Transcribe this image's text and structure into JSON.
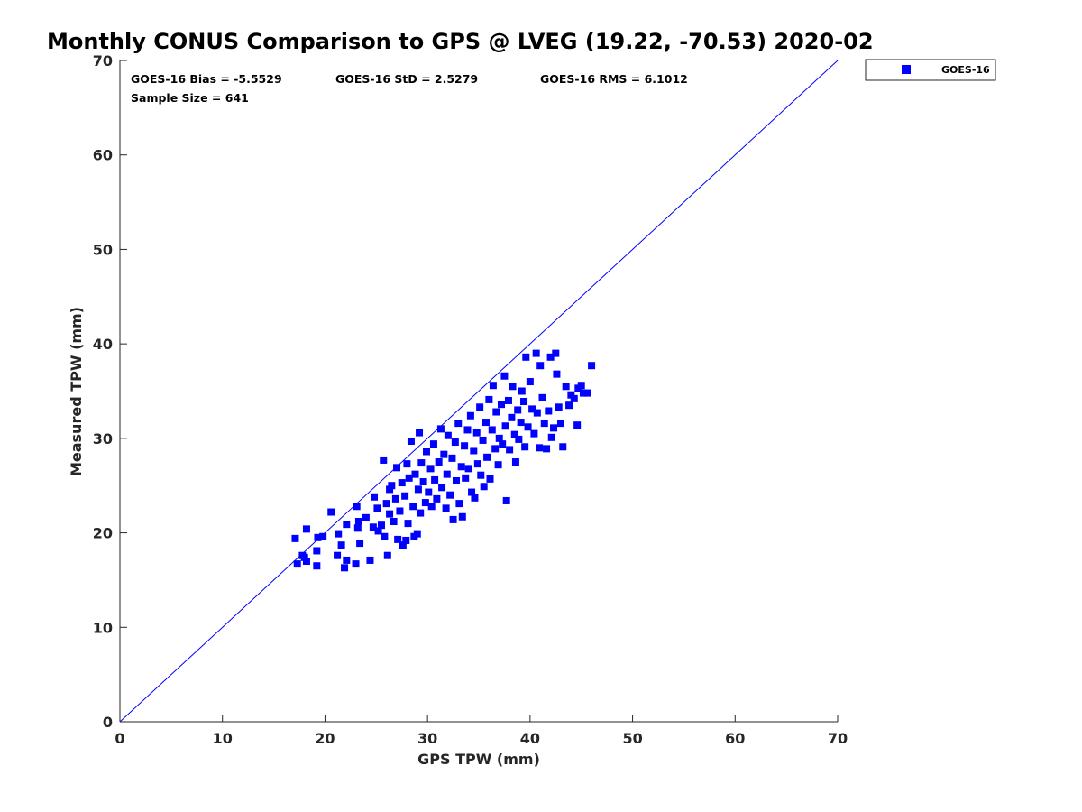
{
  "chart_data": {
    "type": "scatter",
    "title": "Monthly CONUS Comparison to GPS @ LVEG (19.22, -70.53) 2020-02",
    "xlabel": "GPS TPW (mm)",
    "ylabel": "Measured TPW (mm)",
    "xlim": [
      0,
      70
    ],
    "ylim": [
      0,
      70
    ],
    "xticks": [
      "0",
      "10",
      "20",
      "30",
      "40",
      "50",
      "60",
      "70"
    ],
    "yticks": [
      "0",
      "10",
      "20",
      "30",
      "40",
      "50",
      "60",
      "70"
    ],
    "grid": false,
    "legend_position": "outside-top-right",
    "annotations": {
      "bias": "GOES-16 Bias = -5.5529",
      "std": "GOES-16 StD = 2.5279",
      "rms": "GOES-16 RMS = 6.1012",
      "sample": "Sample Size = 641"
    },
    "reference_line": {
      "from": [
        0,
        0
      ],
      "to": [
        70,
        70
      ],
      "color": "#0000ff"
    },
    "series": [
      {
        "name": "GOES-16",
        "color": "#0000ff",
        "marker": "square",
        "points": [
          [
            17.1,
            19.4
          ],
          [
            17.3,
            16.7
          ],
          [
            17.8,
            17.6
          ],
          [
            18.0,
            17.4
          ],
          [
            18.2,
            20.4
          ],
          [
            18.2,
            17.0
          ],
          [
            19.2,
            16.5
          ],
          [
            19.2,
            18.1
          ],
          [
            19.3,
            19.5
          ],
          [
            19.8,
            19.6
          ],
          [
            20.6,
            22.2
          ],
          [
            21.2,
            17.6
          ],
          [
            21.3,
            19.9
          ],
          [
            21.6,
            18.7
          ],
          [
            21.9,
            16.3
          ],
          [
            22.1,
            20.9
          ],
          [
            22.1,
            17.1
          ],
          [
            23.1,
            22.8
          ],
          [
            23.0,
            16.7
          ],
          [
            23.2,
            20.5
          ],
          [
            23.3,
            21.2
          ],
          [
            23.4,
            18.9
          ],
          [
            24.0,
            21.6
          ],
          [
            24.4,
            17.1
          ],
          [
            24.7,
            20.6
          ],
          [
            24.8,
            23.8
          ],
          [
            25.1,
            22.6
          ],
          [
            25.2,
            20.2
          ],
          [
            25.5,
            20.8
          ],
          [
            25.7,
            27.7
          ],
          [
            25.8,
            19.6
          ],
          [
            26.0,
            23.1
          ],
          [
            26.1,
            17.6
          ],
          [
            26.3,
            24.6
          ],
          [
            26.3,
            22.0
          ],
          [
            26.5,
            25.0
          ],
          [
            26.7,
            21.2
          ],
          [
            26.9,
            23.6
          ],
          [
            27.0,
            26.9
          ],
          [
            27.1,
            19.3
          ],
          [
            27.3,
            22.3
          ],
          [
            27.5,
            25.3
          ],
          [
            27.6,
            18.7
          ],
          [
            27.8,
            23.9
          ],
          [
            27.9,
            19.2
          ],
          [
            28.0,
            27.3
          ],
          [
            28.1,
            21.0
          ],
          [
            28.2,
            25.8
          ],
          [
            28.4,
            29.7
          ],
          [
            28.6,
            22.8
          ],
          [
            28.7,
            19.6
          ],
          [
            28.8,
            26.2
          ],
          [
            29.0,
            19.9
          ],
          [
            29.1,
            24.6
          ],
          [
            29.2,
            30.6
          ],
          [
            29.3,
            22.1
          ],
          [
            29.4,
            27.4
          ],
          [
            29.6,
            25.4
          ],
          [
            29.8,
            23.2
          ],
          [
            29.9,
            28.6
          ],
          [
            30.1,
            24.3
          ],
          [
            30.3,
            26.8
          ],
          [
            30.4,
            22.8
          ],
          [
            30.6,
            29.4
          ],
          [
            30.7,
            25.6
          ],
          [
            30.9,
            23.6
          ],
          [
            31.1,
            27.5
          ],
          [
            31.3,
            31.0
          ],
          [
            31.4,
            24.8
          ],
          [
            31.6,
            28.3
          ],
          [
            31.8,
            22.6
          ],
          [
            31.9,
            26.2
          ],
          [
            32.0,
            30.3
          ],
          [
            32.2,
            24.0
          ],
          [
            32.4,
            27.9
          ],
          [
            32.5,
            21.4
          ],
          [
            32.7,
            29.6
          ],
          [
            32.8,
            25.5
          ],
          [
            33.0,
            31.6
          ],
          [
            33.1,
            23.1
          ],
          [
            33.3,
            27.0
          ],
          [
            33.4,
            21.7
          ],
          [
            33.6,
            29.2
          ],
          [
            33.7,
            25.8
          ],
          [
            33.9,
            30.9
          ],
          [
            34.0,
            26.8
          ],
          [
            34.2,
            32.4
          ],
          [
            34.3,
            24.3
          ],
          [
            34.5,
            28.7
          ],
          [
            34.6,
            23.7
          ],
          [
            34.8,
            30.6
          ],
          [
            34.9,
            27.3
          ],
          [
            35.1,
            33.3
          ],
          [
            35.2,
            26.1
          ],
          [
            35.4,
            29.8
          ],
          [
            35.5,
            24.9
          ],
          [
            35.7,
            31.7
          ],
          [
            35.8,
            28.0
          ],
          [
            36.0,
            34.1
          ],
          [
            36.1,
            25.7
          ],
          [
            36.3,
            30.9
          ],
          [
            36.4,
            35.6
          ],
          [
            36.6,
            28.9
          ],
          [
            36.7,
            32.8
          ],
          [
            36.9,
            27.2
          ],
          [
            37.0,
            30.0
          ],
          [
            37.2,
            33.6
          ],
          [
            37.3,
            29.4
          ],
          [
            37.5,
            36.6
          ],
          [
            37.6,
            31.3
          ],
          [
            37.7,
            23.4
          ],
          [
            37.9,
            34.0
          ],
          [
            38.0,
            28.8
          ],
          [
            38.2,
            32.2
          ],
          [
            38.3,
            35.5
          ],
          [
            38.5,
            30.4
          ],
          [
            38.6,
            27.5
          ],
          [
            38.8,
            33.0
          ],
          [
            38.9,
            29.9
          ],
          [
            39.1,
            31.7
          ],
          [
            39.2,
            35.0
          ],
          [
            39.4,
            33.9
          ],
          [
            39.5,
            29.1
          ],
          [
            39.6,
            38.6
          ],
          [
            39.8,
            31.2
          ],
          [
            40.0,
            36.0
          ],
          [
            40.2,
            33.1
          ],
          [
            40.4,
            30.5
          ],
          [
            40.6,
            39.0
          ],
          [
            40.7,
            32.7
          ],
          [
            40.9,
            29.0
          ],
          [
            41.0,
            37.7
          ],
          [
            41.2,
            34.3
          ],
          [
            41.4,
            31.6
          ],
          [
            41.6,
            28.9
          ],
          [
            41.8,
            32.9
          ],
          [
            42.0,
            38.6
          ],
          [
            42.1,
            30.1
          ],
          [
            42.3,
            31.1
          ],
          [
            42.5,
            39.0
          ],
          [
            42.6,
            36.8
          ],
          [
            42.8,
            33.3
          ],
          [
            43.0,
            31.6
          ],
          [
            43.2,
            29.1
          ],
          [
            43.5,
            35.5
          ],
          [
            43.8,
            33.5
          ],
          [
            44.0,
            34.6
          ],
          [
            44.3,
            34.2
          ],
          [
            44.6,
            31.4
          ],
          [
            44.7,
            35.3
          ],
          [
            45.0,
            35.6
          ],
          [
            45.2,
            34.8
          ],
          [
            45.6,
            34.8
          ],
          [
            46.0,
            37.7
          ]
        ]
      }
    ]
  }
}
